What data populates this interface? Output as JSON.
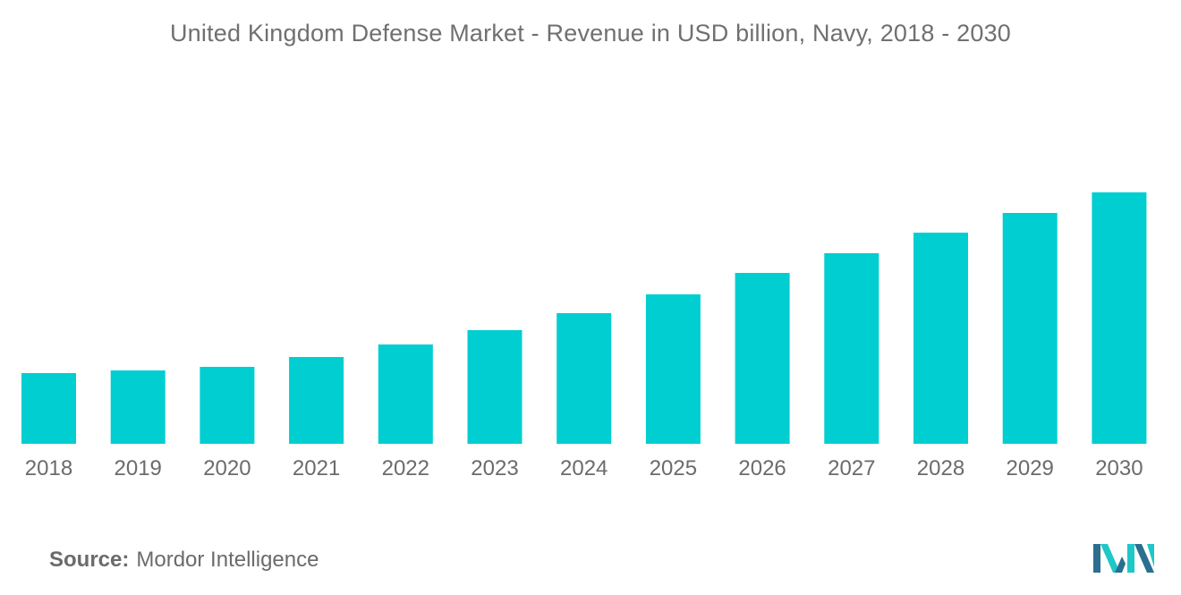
{
  "chart_data": {
    "type": "bar",
    "title": "United Kingdom Defense Market - Revenue in USD billion, Navy, 2018 - 2030",
    "categories": [
      "2018",
      "2019",
      "2020",
      "2021",
      "2022",
      "2023",
      "2024",
      "2025",
      "2026",
      "2027",
      "2028",
      "2029",
      "2030"
    ],
    "values": [
      7.9,
      8.2,
      8.6,
      9.7,
      11.1,
      12.7,
      14.6,
      16.7,
      19.1,
      21.3,
      23.6,
      25.8,
      28.1
    ],
    "xlabel": "",
    "ylabel": "",
    "ylim": [
      0,
      30
    ],
    "grid": false,
    "color": "#00ced1"
  },
  "source": {
    "label": "Source:",
    "value": "Mordor Intelligence"
  },
  "logo": {
    "icon": "mordor-intelligence-logo-icon",
    "colors": [
      "#2a6f8f",
      "#1fc7c7"
    ]
  }
}
